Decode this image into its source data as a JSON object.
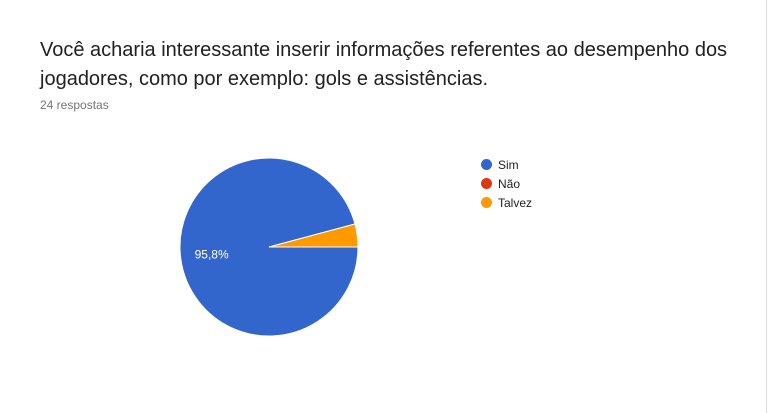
{
  "question": {
    "title": "Você acharia interessante inserir informações referentes ao desempenho dos jogadores, como por exemplo: gols e assistências.",
    "response_count": "24 respostas"
  },
  "chart_data": {
    "type": "pie",
    "categories": [
      "Sim",
      "Não",
      "Talvez"
    ],
    "values": [
      23,
      0,
      1
    ],
    "colors": [
      "#3366cc",
      "#dc3912",
      "#ff9900"
    ],
    "slice_labels": [
      "95,8%",
      "",
      ""
    ],
    "legend_position": "right"
  }
}
